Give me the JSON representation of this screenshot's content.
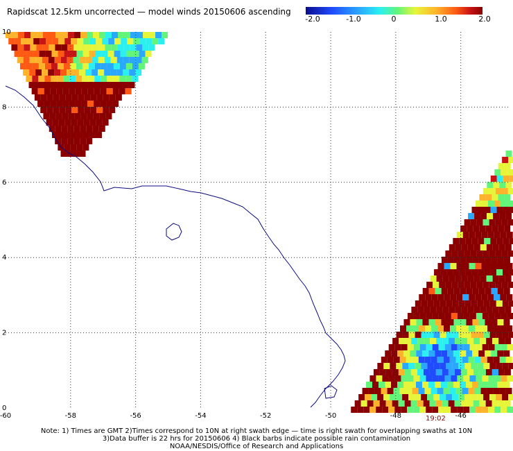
{
  "title": "Rapidscat 12.5km uncorrected — model winds 20150606 ascending",
  "colorbar": {
    "labels": [
      "-2.0",
      "-1.0",
      "0",
      "1.0",
      "2.0"
    ],
    "values": [
      -2.0,
      -1.0,
      0,
      1.0,
      2.0
    ],
    "range": [
      -2.0,
      2.0
    ],
    "colors": [
      "#0a0d8c",
      "#1f4cff",
      "#2aa7ff",
      "#2bf0f0",
      "#63f57a",
      "#e6f53a",
      "#ffb32a",
      "#ff5a14",
      "#c81414",
      "#8a0000"
    ]
  },
  "map": {
    "lon_range": [
      -60,
      -44.5
    ],
    "lat_range": [
      0,
      10
    ],
    "lon_ticks": [
      "-60",
      "-58",
      "-56",
      "-54",
      "-52",
      "-50",
      "-48",
      "-46"
    ],
    "lat_ticks": [
      "0",
      "2",
      "4",
      "6",
      "8",
      "10"
    ],
    "coastline_color": "#0a0a80",
    "gridline_style": "dotted",
    "time_label": "19:02"
  },
  "notes": [
    "Note: 1) Times are GMT 2)Times correspond to 10N at right swath edge — time is right swath for overlapping swaths at 10N",
    "3)Data buffer is 22 hrs for 20150606 4) Black barbs indicate possible rain contamination",
    "NOAA/NESDIS/Office of Research and Applications"
  ]
}
